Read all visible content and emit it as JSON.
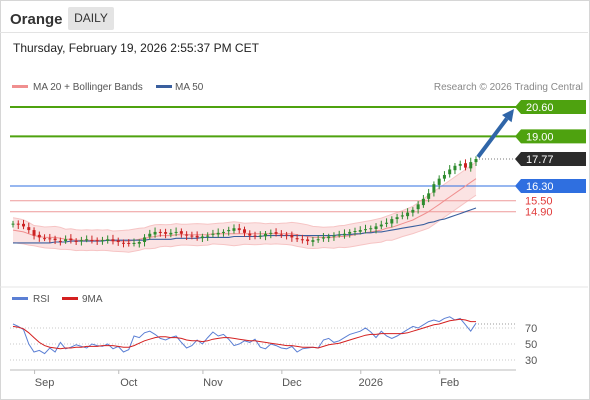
{
  "header": {
    "instrument": "Orange",
    "period": "DAILY",
    "timestamp": "Thursday, February 19, 2026 2:55:37 PM CET"
  },
  "legend": {
    "bollinger": {
      "label": "MA 20 + Bollinger Bands",
      "color": "#f08f8f"
    },
    "ma50": {
      "label": "MA 50",
      "color": "#3a5f9e"
    }
  },
  "copyright": "Research © 2026 Trading Central",
  "colors": {
    "resistance": "#4ea20f",
    "pivot": "#2f6fe0",
    "support": "#e03a3a",
    "last": "#2b2b2b",
    "candle_up": "#2e8b2e",
    "candle_down": "#cc2222",
    "arrow": "#2f65a8",
    "rsi": "#5b7fd4",
    "rsi_ma": "#d42020"
  },
  "chart_data": [
    {
      "type": "candlestick",
      "title": "Orange",
      "x_labels": [
        "Sep",
        "Oct",
        "Nov",
        "Dec",
        "2026",
        "Feb"
      ],
      "ylim": [
        11.4,
        21.2
      ],
      "levels": [
        {
          "value": 20.6,
          "label": "20.60",
          "kind": "resistance"
        },
        {
          "value": 19.0,
          "label": "19.00",
          "kind": "resistance"
        },
        {
          "value": 17.77,
          "label": "17.77",
          "kind": "last"
        },
        {
          "value": 16.3,
          "label": "16.30",
          "kind": "pivot"
        },
        {
          "value": 15.5,
          "label": "15.50",
          "kind": "support"
        },
        {
          "value": 14.9,
          "label": "14.90",
          "kind": "support"
        }
      ],
      "close_series": [
        14.25,
        14.2,
        14.1,
        13.9,
        13.6,
        13.5,
        13.45,
        13.4,
        13.35,
        13.3,
        13.4,
        13.35,
        13.3,
        13.35,
        13.4,
        13.35,
        13.3,
        13.35,
        13.4,
        13.3,
        13.25,
        13.2,
        13.15,
        13.2,
        13.25,
        13.5,
        13.7,
        13.8,
        13.75,
        13.7,
        13.75,
        13.8,
        13.7,
        13.6,
        13.55,
        13.5,
        13.55,
        13.6,
        13.7,
        13.75,
        13.8,
        13.9,
        14.0,
        13.9,
        13.75,
        13.6,
        13.55,
        13.6,
        13.7,
        13.75,
        13.7,
        13.65,
        13.6,
        13.5,
        13.4,
        13.35,
        13.3,
        13.35,
        13.4,
        13.5,
        13.55,
        13.6,
        13.65,
        13.7,
        13.8,
        13.85,
        13.9,
        13.95,
        14.0,
        14.1,
        14.2,
        14.3,
        14.5,
        14.6,
        14.7,
        14.85,
        15.0,
        15.3,
        15.6,
        15.9,
        16.4,
        16.7,
        16.9,
        17.2,
        17.4,
        17.5,
        17.3,
        17.6,
        17.77
      ],
      "ma20_series": [
        13.9,
        13.85,
        13.8,
        13.7,
        13.6,
        13.55,
        13.5,
        13.5,
        13.5,
        13.45,
        13.4,
        13.4,
        13.35,
        13.35,
        13.35,
        13.35,
        13.35,
        13.35,
        13.35,
        13.3,
        13.3,
        13.3,
        13.3,
        13.35,
        13.4,
        13.45,
        13.5,
        13.55,
        13.6,
        13.6,
        13.6,
        13.65,
        13.65,
        13.65,
        13.65,
        13.65,
        13.65,
        13.65,
        13.7,
        13.7,
        13.7,
        13.7,
        13.7,
        13.7,
        13.7,
        13.7,
        13.7,
        13.7,
        13.7,
        13.7,
        13.7,
        13.7,
        13.7,
        13.7,
        13.65,
        13.6,
        13.55,
        13.5,
        13.5,
        13.5,
        13.5,
        13.5,
        13.55,
        13.55,
        13.6,
        13.65,
        13.7,
        13.75,
        13.8,
        13.85,
        13.9,
        14.0,
        14.05,
        14.15,
        14.25,
        14.35,
        14.45,
        14.6,
        14.75,
        14.9,
        15.1,
        15.3,
        15.5,
        15.7,
        15.9,
        16.1,
        16.3,
        16.5,
        16.7
      ],
      "ma50_series": [
        13.2,
        13.2,
        13.2,
        13.2,
        13.2,
        13.2,
        13.2,
        13.2,
        13.25,
        13.25,
        13.25,
        13.3,
        13.3,
        13.3,
        13.3,
        13.3,
        13.3,
        13.3,
        13.35,
        13.35,
        13.35,
        13.35,
        13.35,
        13.35,
        13.35,
        13.35,
        13.4,
        13.4,
        13.4,
        13.4,
        13.4,
        13.45,
        13.45,
        13.45,
        13.45,
        13.45,
        13.5,
        13.5,
        13.5,
        13.5,
        13.5,
        13.5,
        13.55,
        13.55,
        13.55,
        13.55,
        13.55,
        13.55,
        13.6,
        13.6,
        13.6,
        13.6,
        13.6,
        13.6,
        13.6,
        13.6,
        13.6,
        13.6,
        13.6,
        13.6,
        13.6,
        13.6,
        13.65,
        13.65,
        13.65,
        13.7,
        13.7,
        13.75,
        13.75,
        13.8,
        13.8,
        13.85,
        13.9,
        13.95,
        14.0,
        14.05,
        14.1,
        14.15,
        14.2,
        14.3,
        14.35,
        14.45,
        14.5,
        14.6,
        14.7,
        14.8,
        14.9,
        15.0,
        15.1
      ]
    },
    {
      "type": "line",
      "title": "RSI",
      "series": [
        {
          "name": "RSI",
          "values": [
            75,
            72,
            68,
            50,
            40,
            42,
            38,
            45,
            40,
            52,
            44,
            46,
            49,
            47,
            45,
            50,
            48,
            47,
            50,
            44,
            47,
            40,
            43,
            60,
            58,
            64,
            66,
            62,
            57,
            55,
            58,
            60,
            52,
            45,
            48,
            55,
            50,
            58,
            65,
            60,
            62,
            56,
            48,
            50,
            54,
            52,
            56,
            46,
            44,
            50,
            48,
            45,
            44,
            47,
            40,
            44,
            45,
            46,
            45,
            55,
            57,
            52,
            54,
            58,
            62,
            64,
            66,
            70,
            65,
            58,
            66,
            60,
            57,
            60,
            64,
            68,
            72,
            70,
            74,
            78,
            80,
            78,
            82,
            84,
            80,
            82,
            74,
            66,
            76
          ]
        },
        {
          "name": "9MA",
          "values": [
            72,
            71,
            69,
            64,
            58,
            52,
            48,
            46,
            45,
            44,
            45,
            45,
            46,
            46,
            47,
            47,
            47,
            48,
            48,
            48,
            47,
            46,
            46,
            48,
            51,
            54,
            56,
            58,
            59,
            59,
            58,
            58,
            57,
            55,
            54,
            54,
            53,
            54,
            56,
            57,
            58,
            58,
            57,
            56,
            55,
            54,
            54,
            53,
            52,
            51,
            50,
            49,
            48,
            48,
            47,
            46,
            46,
            46,
            45,
            47,
            49,
            50,
            51,
            53,
            55,
            57,
            59,
            61,
            62,
            62,
            63,
            63,
            63,
            63,
            63,
            64,
            66,
            68,
            70,
            72,
            74,
            75,
            77,
            79,
            80,
            81,
            80,
            78,
            78
          ]
        }
      ],
      "ylim": [
        20,
        90
      ],
      "y_ticks": [
        70,
        50,
        30
      ],
      "reference_line": 75
    }
  ]
}
